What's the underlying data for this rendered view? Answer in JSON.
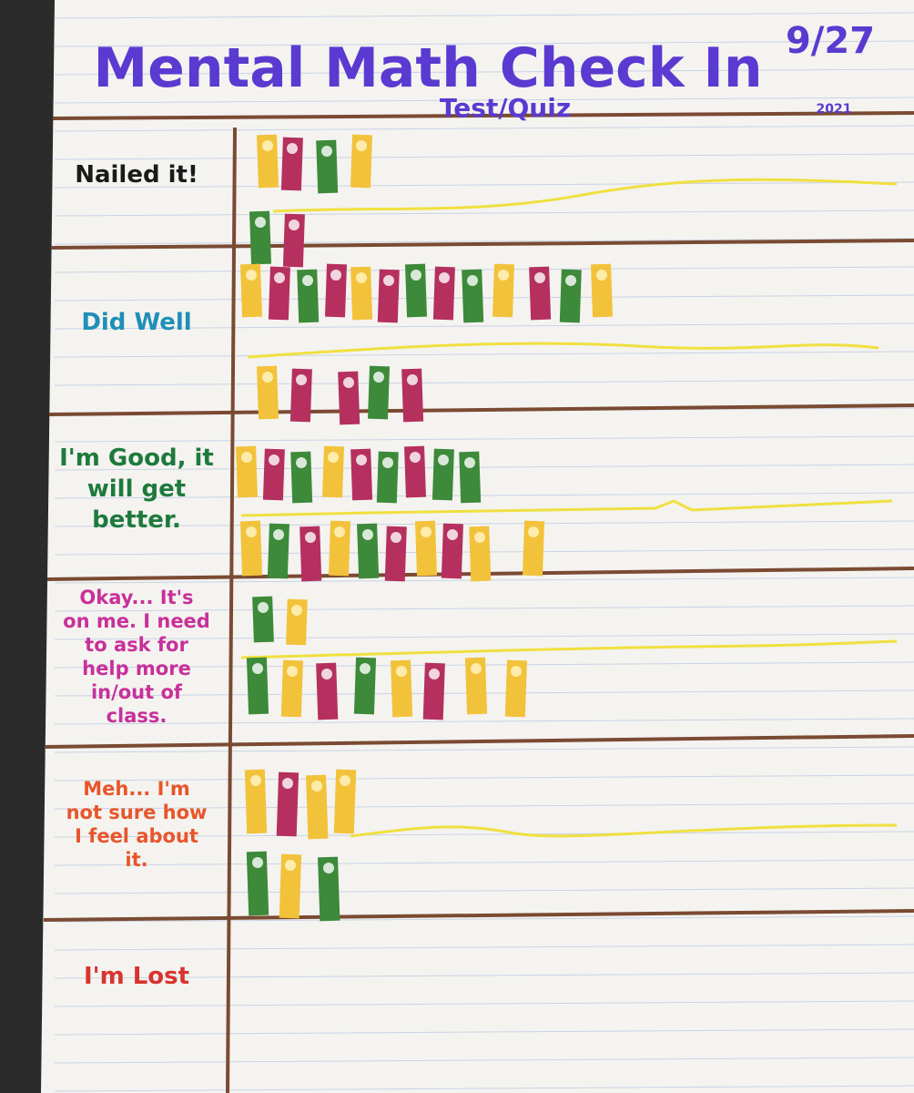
{
  "header": {
    "title": "Mental Math Check In",
    "date": "9/27",
    "year": "2021",
    "subtitle": "Test/Quiz"
  },
  "rows": [
    {
      "label": "Nailed it!",
      "color": "#1a1a1a"
    },
    {
      "label": "Did Well",
      "color": "#1f8fb8"
    },
    {
      "label": "I'm Good, it will get better.",
      "color": "#1e7a3c"
    },
    {
      "label": "Okay... It's on me. I need to ask for help more in/out of class.",
      "color": "#c8309a"
    },
    {
      "label": "Meh... I'm not sure how I feel about it.",
      "color": "#e8552a"
    },
    {
      "label": "I'm Lost",
      "color": "#d8342e"
    }
  ]
}
